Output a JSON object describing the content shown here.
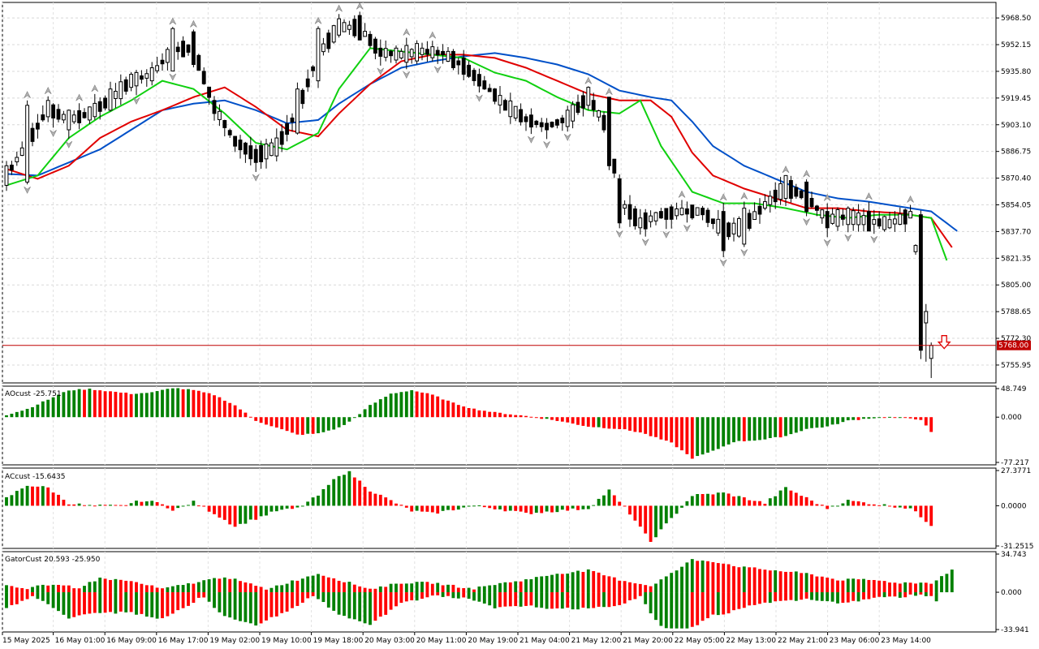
{
  "chart_data": {
    "type": "candlestick",
    "symbol": "",
    "x_labels": [
      "15 May 2025",
      "16 May 01:00",
      "16 May 09:00",
      "16 May 17:00",
      "19 May 02:00",
      "19 May 10:00",
      "19 May 18:00",
      "20 May 03:00",
      "20 May 11:00",
      "20 May 19:00",
      "21 May 04:00",
      "21 May 12:00",
      "21 May 20:00",
      "22 May 05:00",
      "22 May 13:00",
      "22 May 21:00",
      "23 May 06:00",
      "23 May 14:00"
    ],
    "price_axis": {
      "min": 5745.0,
      "max": 5978.0,
      "ticks": [
        "5968.50",
        "5952.15",
        "5935.80",
        "5919.45",
        "5903.10",
        "5886.75",
        "5870.40",
        "5854.05",
        "5837.70",
        "5821.35",
        "5805.00",
        "5788.65",
        "5772.30",
        "5755.95"
      ]
    },
    "current_price": {
      "value": 5768.0,
      "label": "5768.00",
      "color": "#c00000"
    },
    "ohlc_anchors": [
      [
        0,
        5866,
        5878
      ],
      [
        4,
        5868,
        5915
      ],
      [
        8,
        5908,
        5918
      ],
      [
        12,
        5900,
        5912
      ],
      [
        16,
        5906,
        5914
      ],
      [
        20,
        5912,
        5925
      ],
      [
        24,
        5926,
        5934
      ],
      [
        28,
        5930,
        5938
      ],
      [
        32,
        5936,
        5962
      ],
      [
        36,
        5960,
        5940
      ],
      [
        40,
        5918,
        5910
      ],
      [
        44,
        5896,
        5890
      ],
      [
        48,
        5888,
        5880
      ],
      [
        52,
        5884,
        5895
      ],
      [
        56,
        5898,
        5925
      ],
      [
        60,
        5930,
        5962
      ],
      [
        64,
        5958,
        5968
      ],
      [
        68,
        5970,
        5955
      ],
      [
        72,
        5950,
        5945
      ],
      [
        76,
        5944,
        5948
      ],
      [
        80,
        5946,
        5950
      ],
      [
        84,
        5948,
        5946
      ],
      [
        88,
        5944,
        5934
      ],
      [
        92,
        5930,
        5925
      ],
      [
        96,
        5918,
        5912
      ],
      [
        100,
        5908,
        5905
      ],
      [
        104,
        5904,
        5900
      ],
      [
        108,
        5902,
        5912
      ],
      [
        112,
        5915,
        5926
      ],
      [
        116,
        5920,
        5878
      ],
      [
        118,
        5870,
        5843
      ],
      [
        122,
        5840,
        5846
      ],
      [
        126,
        5850,
        5846
      ],
      [
        130,
        5848,
        5852
      ],
      [
        134,
        5852,
        5848
      ],
      [
        138,
        5850,
        5826
      ],
      [
        142,
        5830,
        5852
      ],
      [
        146,
        5852,
        5856
      ],
      [
        150,
        5858,
        5872
      ],
      [
        154,
        5868,
        5850
      ],
      [
        158,
        5850,
        5840
      ],
      [
        162,
        5842,
        5852
      ],
      [
        166,
        5850,
        5838
      ],
      [
        170,
        5840,
        5845
      ],
      [
        174,
        5846,
        5850
      ],
      [
        176,
        5848,
        5765
      ],
      [
        178,
        5760,
        5768
      ]
    ],
    "ma_series": [
      {
        "color": "#0050c8",
        "points": [
          [
            0,
            5873
          ],
          [
            6,
            5872
          ],
          [
            12,
            5880
          ],
          [
            18,
            5888
          ],
          [
            24,
            5900
          ],
          [
            30,
            5912
          ],
          [
            36,
            5916
          ],
          [
            42,
            5918
          ],
          [
            48,
            5912
          ],
          [
            54,
            5904
          ],
          [
            60,
            5906
          ],
          [
            64,
            5916
          ],
          [
            70,
            5928
          ],
          [
            76,
            5938
          ],
          [
            82,
            5942
          ],
          [
            88,
            5945
          ],
          [
            94,
            5947
          ],
          [
            100,
            5944
          ],
          [
            106,
            5940
          ],
          [
            112,
            5934
          ],
          [
            118,
            5924
          ],
          [
            124,
            5920
          ],
          [
            128,
            5918
          ],
          [
            132,
            5905
          ],
          [
            136,
            5890
          ],
          [
            142,
            5878
          ],
          [
            148,
            5870
          ],
          [
            154,
            5862
          ],
          [
            160,
            5858
          ],
          [
            166,
            5856
          ],
          [
            172,
            5853
          ],
          [
            178,
            5850
          ],
          [
            183,
            5838
          ]
        ]
      },
      {
        "color": "#e00000",
        "points": [
          [
            0,
            5876
          ],
          [
            6,
            5870
          ],
          [
            12,
            5878
          ],
          [
            18,
            5895
          ],
          [
            24,
            5905
          ],
          [
            30,
            5912
          ],
          [
            36,
            5920
          ],
          [
            42,
            5926
          ],
          [
            48,
            5914
          ],
          [
            54,
            5900
          ],
          [
            60,
            5896
          ],
          [
            64,
            5910
          ],
          [
            70,
            5928
          ],
          [
            76,
            5942
          ],
          [
            82,
            5946
          ],
          [
            88,
            5946
          ],
          [
            94,
            5944
          ],
          [
            100,
            5938
          ],
          [
            106,
            5930
          ],
          [
            112,
            5922
          ],
          [
            118,
            5918
          ],
          [
            124,
            5918
          ],
          [
            128,
            5908
          ],
          [
            132,
            5886
          ],
          [
            136,
            5872
          ],
          [
            142,
            5864
          ],
          [
            148,
            5858
          ],
          [
            154,
            5852
          ],
          [
            160,
            5852
          ],
          [
            166,
            5850
          ],
          [
            172,
            5849
          ],
          [
            178,
            5846
          ],
          [
            182,
            5828
          ]
        ]
      },
      {
        "color": "#10d010",
        "points": [
          [
            0,
            5866
          ],
          [
            6,
            5872
          ],
          [
            12,
            5895
          ],
          [
            18,
            5908
          ],
          [
            24,
            5918
          ],
          [
            30,
            5930
          ],
          [
            36,
            5925
          ],
          [
            42,
            5910
          ],
          [
            48,
            5892
          ],
          [
            54,
            5888
          ],
          [
            60,
            5898
          ],
          [
            64,
            5925
          ],
          [
            70,
            5950
          ],
          [
            76,
            5948
          ],
          [
            82,
            5946
          ],
          [
            88,
            5944
          ],
          [
            94,
            5935
          ],
          [
            100,
            5930
          ],
          [
            106,
            5920
          ],
          [
            112,
            5912
          ],
          [
            118,
            5910
          ],
          [
            122,
            5918
          ],
          [
            126,
            5890
          ],
          [
            132,
            5862
          ],
          [
            138,
            5855
          ],
          [
            144,
            5855
          ],
          [
            150,
            5852
          ],
          [
            156,
            5848
          ],
          [
            162,
            5846
          ],
          [
            168,
            5848
          ],
          [
            174,
            5848
          ],
          [
            178,
            5846
          ],
          [
            181,
            5820
          ]
        ]
      }
    ],
    "indicators": [
      {
        "name": "AOcust",
        "value_label": "-25.751",
        "ticks": [
          "48.749",
          "0.000",
          "-77.217"
        ],
        "range": [
          -77.217,
          48.749
        ],
        "profile": [
          [
            0,
            4
          ],
          [
            4,
            14
          ],
          [
            8,
            30
          ],
          [
            12,
            46
          ],
          [
            16,
            48
          ],
          [
            20,
            44
          ],
          [
            24,
            40
          ],
          [
            28,
            42
          ],
          [
            32,
            50
          ],
          [
            36,
            46
          ],
          [
            40,
            38
          ],
          [
            44,
            20
          ],
          [
            48,
            -6
          ],
          [
            52,
            -18
          ],
          [
            56,
            -30
          ],
          [
            60,
            -28
          ],
          [
            64,
            -18
          ],
          [
            66,
            -8
          ],
          [
            70,
            20
          ],
          [
            74,
            40
          ],
          [
            78,
            46
          ],
          [
            82,
            38
          ],
          [
            86,
            24
          ],
          [
            90,
            14
          ],
          [
            94,
            8
          ],
          [
            100,
            2
          ],
          [
            106,
            -6
          ],
          [
            112,
            -16
          ],
          [
            118,
            -20
          ],
          [
            122,
            -26
          ],
          [
            128,
            -44
          ],
          [
            132,
            -70
          ],
          [
            136,
            -58
          ],
          [
            140,
            -42
          ],
          [
            146,
            -38
          ],
          [
            150,
            -32
          ],
          [
            154,
            -20
          ],
          [
            158,
            -16
          ],
          [
            162,
            -6
          ],
          [
            166,
            -2
          ],
          [
            170,
            0
          ],
          [
            174,
            -2
          ],
          [
            176,
            -4
          ],
          [
            178,
            -26
          ]
        ]
      },
      {
        "name": "ACcust",
        "value_label": "-15.6435",
        "ticks": [
          "27.3771",
          "0.0000",
          "-31.2515"
        ],
        "range": [
          -31.2515,
          27.3771
        ],
        "profile": [
          [
            0,
            6
          ],
          [
            4,
            16
          ],
          [
            8,
            14
          ],
          [
            12,
            2
          ],
          [
            16,
            0
          ],
          [
            22,
            0
          ],
          [
            26,
            4
          ],
          [
            30,
            2
          ],
          [
            32,
            -4
          ],
          [
            36,
            3
          ],
          [
            40,
            -6
          ],
          [
            44,
            -16
          ],
          [
            48,
            -10
          ],
          [
            52,
            -4
          ],
          [
            56,
            -2
          ],
          [
            60,
            8
          ],
          [
            64,
            24
          ],
          [
            66,
            26
          ],
          [
            70,
            12
          ],
          [
            74,
            4
          ],
          [
            78,
            -4
          ],
          [
            82,
            -6
          ],
          [
            86,
            -3
          ],
          [
            90,
            0
          ],
          [
            94,
            -2
          ],
          [
            100,
            -6
          ],
          [
            106,
            -4
          ],
          [
            112,
            -2
          ],
          [
            116,
            12
          ],
          [
            120,
            -6
          ],
          [
            124,
            -28
          ],
          [
            128,
            -10
          ],
          [
            132,
            8
          ],
          [
            138,
            10
          ],
          [
            142,
            6
          ],
          [
            146,
            2
          ],
          [
            150,
            14
          ],
          [
            154,
            6
          ],
          [
            158,
            -2
          ],
          [
            162,
            4
          ],
          [
            166,
            2
          ],
          [
            170,
            0
          ],
          [
            174,
            -2
          ],
          [
            178,
            -15
          ]
        ]
      },
      {
        "name": "GatorCust",
        "value_label": "20.593 -25.950",
        "ticks": [
          "34.743",
          "0.000",
          "-33.941"
        ],
        "range": [
          -33.941,
          34.743
        ]
      }
    ]
  }
}
